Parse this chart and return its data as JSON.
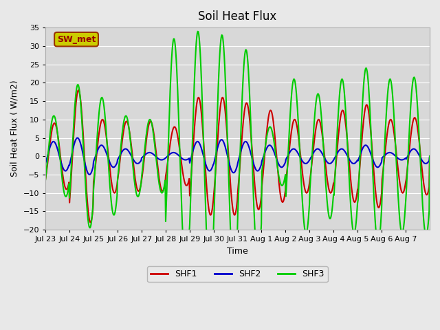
{
  "title": "Soil Heat Flux",
  "xlabel": "Time",
  "ylabel": "Soil Heat Flux ( W/m2)",
  "ylim": [
    -20,
    35
  ],
  "yticks": [
    -20,
    -15,
    -10,
    -5,
    0,
    5,
    10,
    15,
    20,
    25,
    30,
    35
  ],
  "line_colors": {
    "SHF1": "#cc0000",
    "SHF2": "#0000cc",
    "SHF3": "#00cc00"
  },
  "line_widths": {
    "SHF1": 1.5,
    "SHF2": 1.5,
    "SHF3": 1.5
  },
  "bg_color": "#e8e8e8",
  "plot_bg_color": "#d8d8d8",
  "annotation_text": "SW_met",
  "annotation_bg": "#cccc00",
  "annotation_border": "#993300",
  "annotation_text_color": "#990000",
  "grid_color": "#ffffff",
  "tick_labels": [
    "Jul 23",
    "Jul 24",
    "Jul 25",
    "Jul 26",
    "Jul 27",
    "Jul 28",
    "Jul 29",
    "Jul 30",
    "Jul 31",
    "Aug 1",
    "Aug 2",
    "Aug 3",
    "Aug 4",
    "Aug 5",
    "Aug 6",
    "Aug 7"
  ]
}
